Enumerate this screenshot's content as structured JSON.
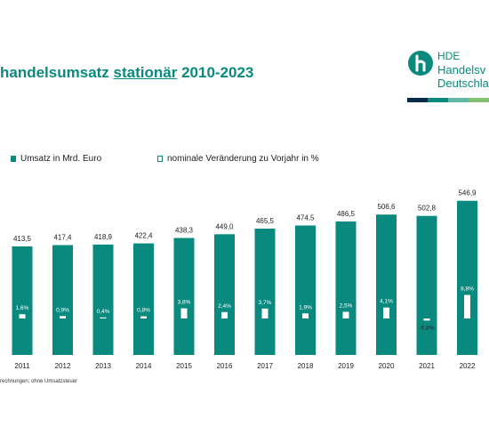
{
  "header": {
    "title_part1": "handelsumsatz",
    "title_part2": "stationär",
    "title_part3": "2010-2023"
  },
  "logo": {
    "line1": "HDE",
    "line2": "Handelsv",
    "line3": "Deutschla",
    "colors": [
      "#0b2a4a",
      "#0a8a7f",
      "#5fb7a4",
      "#86c073"
    ]
  },
  "legend": {
    "revenue_label": "Umsatz in Mrd. Euro",
    "change_label": "nominale Veränderung zu Vorjahr in %"
  },
  "footnote": "rechnungen; ohne Umsatzsteuer",
  "colors": {
    "accent": "#0a8a7f",
    "change_fill": "#ffffff",
    "text": "#222222"
  },
  "chart_data": {
    "type": "bar",
    "categories": [
      "2011",
      "2012",
      "2013",
      "2014",
      "2015",
      "2016",
      "2017",
      "2018",
      "2019",
      "2020",
      "2021",
      "2022"
    ],
    "series": [
      {
        "name": "Umsatz in Mrd. Euro",
        "values": [
          413.5,
          417.4,
          418.9,
          422.4,
          438.3,
          449.0,
          465.5,
          474.5,
          486.5,
          506.6,
          502.8,
          546.9
        ],
        "labels": [
          "413,5",
          "417,4",
          "418,9",
          "422,4",
          "438,3",
          "449,0",
          "465,5",
          "474,5",
          "486,5",
          "506,6",
          "502,8",
          "546,9"
        ]
      },
      {
        "name": "nominale Veränderung zu Vorjahr in %",
        "values": [
          1.6,
          0.9,
          0.4,
          0.8,
          3.8,
          2.4,
          3.7,
          1.9,
          2.5,
          4.1,
          -0.8,
          8.8
        ],
        "labels": [
          "1,6%",
          "0,9%",
          "0,4%",
          "0,8%",
          "3,8%",
          "2,4%",
          "3,7%",
          "1,9%",
          "2,5%",
          "4,1%",
          "-0,8%",
          "8,8%"
        ]
      }
    ],
    "grid": false,
    "legend_position": "top"
  }
}
